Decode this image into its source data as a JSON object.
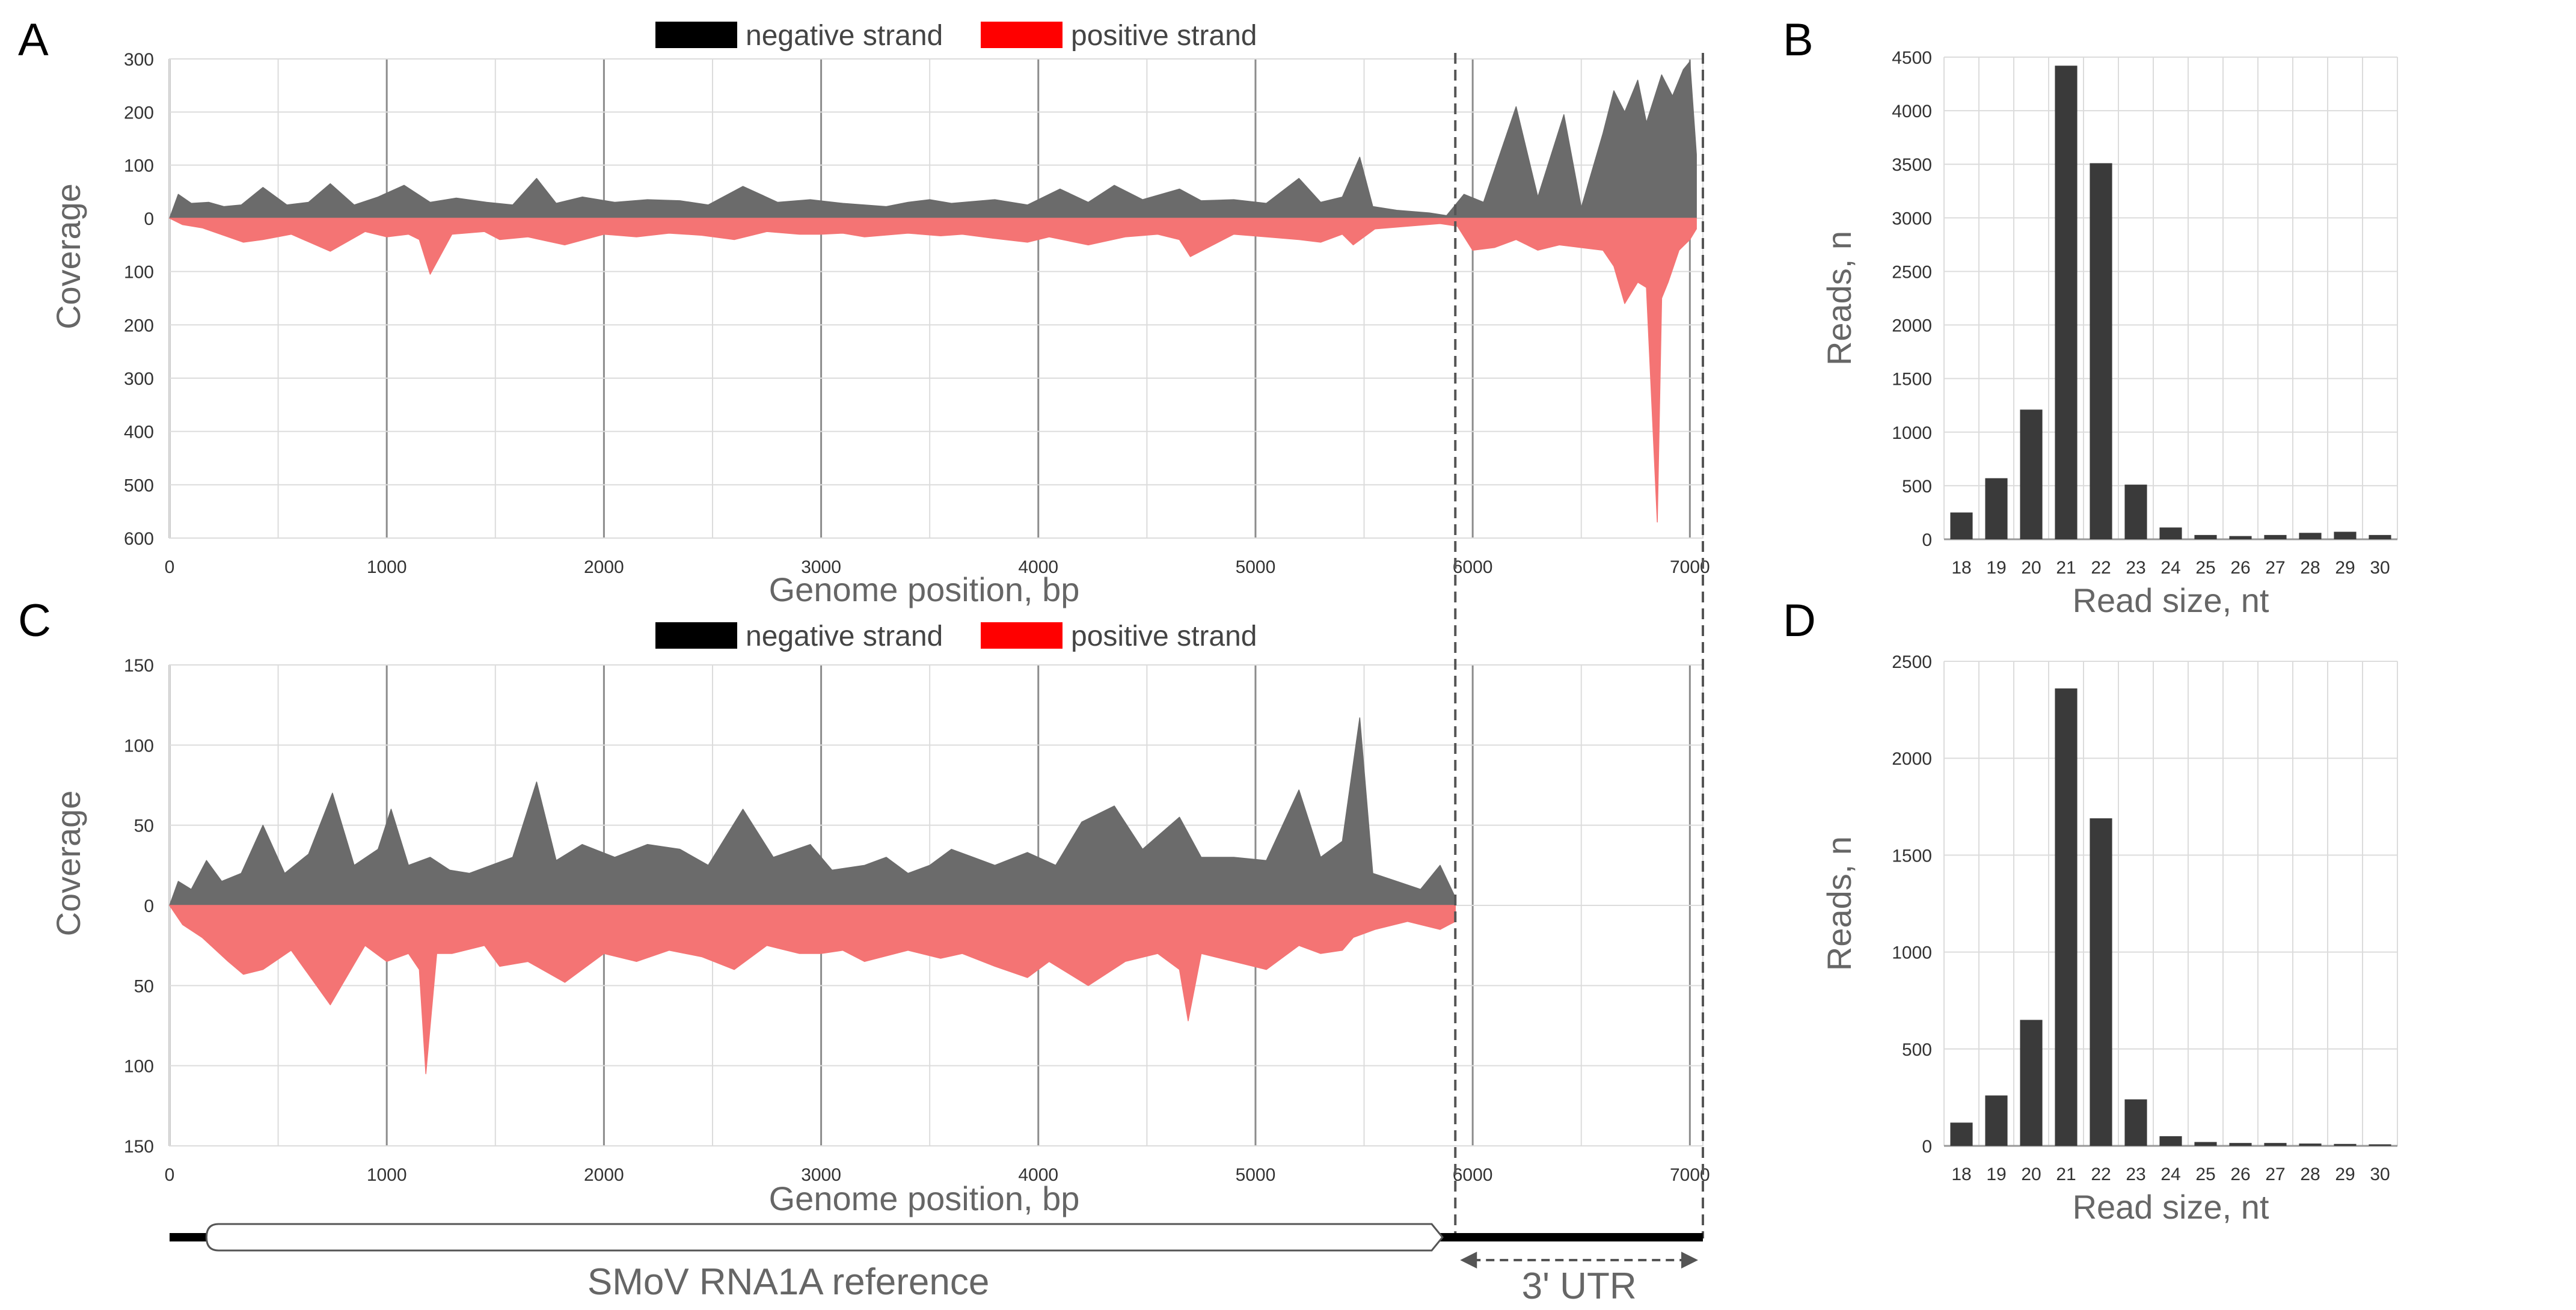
{
  "colors": {
    "negative": "#6b6b6b",
    "positive": "#f47474",
    "legend_negative": "#000000",
    "legend_positive": "#ff0000",
    "bar": "#3a3a3a",
    "grid_minor": "#dcdcdc",
    "grid_major": "#8c8c8c",
    "dashed": "#555555"
  },
  "chart_data": [
    {
      "id": "A",
      "panel_label": "A",
      "type": "area",
      "title": "",
      "legend": [
        {
          "key": "negative",
          "label": "negative strand"
        },
        {
          "key": "positive",
          "label": "positive strand"
        }
      ],
      "xlabel": "Genome position, bp",
      "ylabel": "Coverage",
      "xlim": [
        0,
        7060
      ],
      "ylim": [
        -600,
        300
      ],
      "xticks": [
        0,
        1000,
        2000,
        3000,
        4000,
        5000,
        6000,
        7000
      ],
      "yticks": [
        300,
        200,
        100,
        0,
        -100,
        -200,
        -300,
        -400,
        -500,
        -600
      ],
      "ytick_labels": [
        "300",
        "200",
        "100",
        "0",
        "100",
        "200",
        "300",
        "400",
        "500",
        "600"
      ],
      "series": [
        {
          "name": "negative strand",
          "sign": 1,
          "x": [
            0,
            40,
            100,
            180,
            250,
            330,
            430,
            540,
            640,
            740,
            850,
            960,
            1080,
            1200,
            1320,
            1460,
            1580,
            1690,
            1780,
            1900,
            2050,
            2200,
            2350,
            2480,
            2640,
            2800,
            2950,
            3100,
            3300,
            3400,
            3500,
            3600,
            3800,
            3950,
            4100,
            4230,
            4350,
            4480,
            4650,
            4750,
            4900,
            5050,
            5200,
            5300,
            5400,
            5480,
            5540,
            5650,
            5800,
            5880,
            5960,
            6050,
            6200,
            6300,
            6420,
            6500,
            6600,
            6650,
            6700,
            6760,
            6800,
            6870,
            6920,
            6970,
            7000,
            7030
          ],
          "values": [
            0,
            45,
            28,
            30,
            22,
            25,
            58,
            25,
            30,
            65,
            25,
            40,
            62,
            30,
            38,
            30,
            25,
            75,
            28,
            40,
            30,
            35,
            33,
            25,
            60,
            30,
            35,
            28,
            22,
            30,
            35,
            28,
            35,
            25,
            55,
            30,
            62,
            35,
            55,
            33,
            35,
            28,
            75,
            30,
            40,
            115,
            22,
            15,
            10,
            5,
            45,
            30,
            210,
            40,
            195,
            20,
            160,
            240,
            200,
            260,
            180,
            270,
            230,
            280,
            295,
            120
          ]
        },
        {
          "name": "positive strand",
          "sign": -1,
          "x": [
            0,
            60,
            150,
            270,
            340,
            430,
            560,
            740,
            900,
            1000,
            1100,
            1150,
            1200,
            1300,
            1450,
            1520,
            1650,
            1820,
            2000,
            2150,
            2300,
            2450,
            2600,
            2750,
            2900,
            3000,
            3100,
            3200,
            3400,
            3550,
            3650,
            3800,
            3950,
            4050,
            4230,
            4400,
            4550,
            4650,
            4700,
            4900,
            5050,
            5200,
            5300,
            5400,
            5450,
            5550,
            5700,
            5850,
            5930,
            6000,
            6100,
            6200,
            6300,
            6400,
            6600,
            6650,
            6700,
            6760,
            6800,
            6850,
            6870,
            6900,
            6950,
            7000,
            7030
          ],
          "values": [
            0,
            12,
            18,
            35,
            45,
            40,
            30,
            62,
            25,
            35,
            30,
            40,
            105,
            30,
            25,
            40,
            35,
            50,
            30,
            35,
            28,
            32,
            40,
            25,
            30,
            30,
            28,
            35,
            28,
            33,
            30,
            38,
            45,
            35,
            50,
            35,
            30,
            40,
            72,
            30,
            35,
            40,
            45,
            30,
            50,
            20,
            15,
            10,
            15,
            60,
            55,
            40,
            60,
            50,
            60,
            90,
            160,
            120,
            130,
            570,
            150,
            120,
            60,
            40,
            20
          ]
        }
      ]
    },
    {
      "id": "B",
      "panel_label": "B",
      "type": "bar",
      "title": "",
      "categories": [
        "18",
        "19",
        "20",
        "21",
        "22",
        "23",
        "24",
        "25",
        "26",
        "27",
        "28",
        "29",
        "30"
      ],
      "values": [
        250,
        570,
        1210,
        4420,
        3510,
        510,
        110,
        40,
        30,
        40,
        60,
        70,
        40
      ],
      "xlabel": "Read size, nt",
      "ylabel": "Reads, n",
      "ylim": [
        0,
        4500
      ],
      "yticks": [
        0,
        500,
        1000,
        1500,
        2000,
        2500,
        3000,
        3500,
        4000,
        4500
      ],
      "ytick_labels": [
        "0",
        "500",
        "1000",
        "1500",
        "2000",
        "2500",
        "3000",
        "3500",
        "4000",
        "4500"
      ]
    },
    {
      "id": "C",
      "panel_label": "C",
      "type": "area",
      "title": "",
      "legend": [
        {
          "key": "negative",
          "label": "negative strand"
        },
        {
          "key": "positive",
          "label": "positive strand"
        }
      ],
      "xlabel": "Genome position, bp",
      "ylabel": "Coverage",
      "xlim": [
        0,
        7060
      ],
      "ylim": [
        -150,
        150
      ],
      "xticks": [
        0,
        1000,
        2000,
        3000,
        4000,
        5000,
        6000,
        7000
      ],
      "yticks": [
        150,
        100,
        50,
        0,
        -50,
        -100,
        -150
      ],
      "ytick_labels": [
        "150",
        "100",
        "50",
        "0",
        "50",
        "100",
        "150"
      ],
      "series": [
        {
          "name": "negative strand",
          "sign": 1,
          "x": [
            0,
            40,
            100,
            170,
            240,
            330,
            430,
            530,
            640,
            750,
            850,
            960,
            1020,
            1100,
            1200,
            1290,
            1380,
            1480,
            1580,
            1690,
            1780,
            1900,
            2050,
            2200,
            2350,
            2480,
            2640,
            2780,
            2950,
            3050,
            3200,
            3300,
            3400,
            3500,
            3600,
            3700,
            3800,
            3950,
            4080,
            4200,
            4350,
            4480,
            4650,
            4750,
            4900,
            5050,
            5200,
            5300,
            5400,
            5480,
            5540,
            5650,
            5760,
            5850,
            5920
          ],
          "values": [
            0,
            15,
            10,
            28,
            15,
            20,
            50,
            20,
            32,
            70,
            25,
            35,
            60,
            25,
            30,
            22,
            20,
            25,
            30,
            77,
            28,
            38,
            30,
            38,
            35,
            25,
            60,
            30,
            38,
            22,
            25,
            30,
            20,
            25,
            35,
            30,
            25,
            33,
            25,
            52,
            62,
            35,
            55,
            30,
            30,
            28,
            72,
            30,
            40,
            117,
            20,
            15,
            10,
            25,
            5
          ]
        },
        {
          "name": "positive strand",
          "sign": -1,
          "x": [
            0,
            60,
            150,
            270,
            340,
            430,
            560,
            740,
            900,
            1000,
            1100,
            1150,
            1180,
            1230,
            1300,
            1450,
            1520,
            1650,
            1820,
            2000,
            2150,
            2300,
            2450,
            2600,
            2750,
            2900,
            3000,
            3100,
            3200,
            3400,
            3550,
            3650,
            3800,
            3950,
            4050,
            4230,
            4400,
            4550,
            4650,
            4690,
            4750,
            4900,
            5050,
            5200,
            5300,
            5400,
            5450,
            5550,
            5700,
            5850,
            5920
          ],
          "values": [
            0,
            12,
            20,
            35,
            43,
            40,
            28,
            62,
            25,
            35,
            30,
            40,
            105,
            30,
            30,
            25,
            38,
            35,
            48,
            30,
            35,
            28,
            32,
            40,
            25,
            30,
            30,
            28,
            35,
            28,
            33,
            30,
            38,
            45,
            35,
            50,
            35,
            30,
            40,
            72,
            30,
            35,
            40,
            25,
            30,
            28,
            20,
            15,
            10,
            15,
            10
          ]
        }
      ]
    },
    {
      "id": "D",
      "panel_label": "D",
      "type": "bar",
      "title": "",
      "categories": [
        "18",
        "19",
        "20",
        "21",
        "22",
        "23",
        "24",
        "25",
        "26",
        "27",
        "28",
        "29",
        "30"
      ],
      "values": [
        120,
        260,
        650,
        2360,
        1690,
        240,
        50,
        20,
        15,
        15,
        12,
        10,
        8
      ],
      "xlabel": "Read size, nt",
      "ylabel": "Reads, n",
      "ylim": [
        0,
        2500
      ],
      "yticks": [
        0,
        500,
        1000,
        1500,
        2000,
        2500
      ],
      "ytick_labels": [
        "0",
        "500",
        "1000",
        "1500",
        "2000",
        "2500"
      ]
    }
  ],
  "annotation": {
    "reference_label": "SMoV RNA1A reference",
    "utr_label": "3' UTR",
    "genome_length": 7060,
    "orf_start": 170,
    "orf_end": 5850,
    "utr_start": 5920,
    "utr_end": 7060
  }
}
